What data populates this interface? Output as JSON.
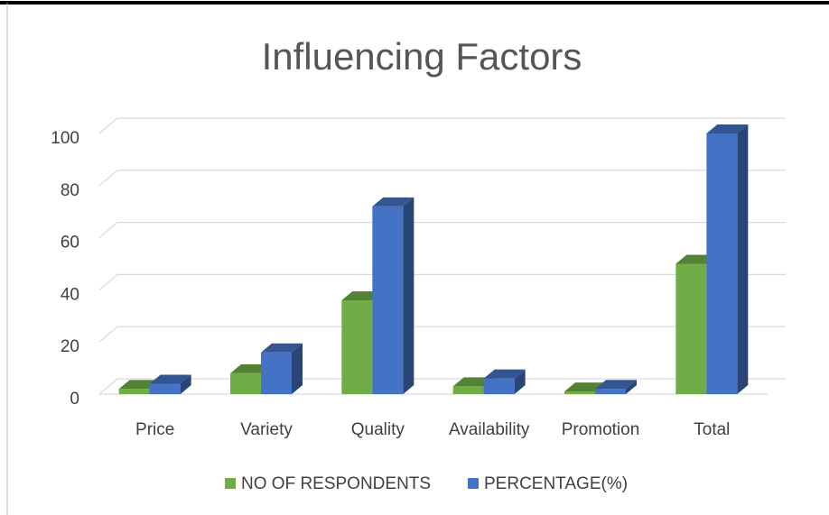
{
  "chart_data": {
    "type": "bar",
    "title": "Influencing Factors",
    "categories": [
      "Price",
      "Variety",
      "Quality",
      "Availability",
      "Promotion",
      "Total"
    ],
    "series": [
      {
        "name": "NO OF RESPONDENTS",
        "color": "#70ad47",
        "values": [
          2,
          8,
          36,
          3,
          1,
          50
        ]
      },
      {
        "name": "PERCENTAGE(%)",
        "color": "#4472c4",
        "values": [
          4,
          16,
          72,
          6,
          2,
          100
        ]
      }
    ],
    "ylim": [
      0,
      100
    ],
    "yticks": [
      0,
      20,
      40,
      60,
      80,
      100
    ],
    "grid": true,
    "legend": "bottom"
  }
}
